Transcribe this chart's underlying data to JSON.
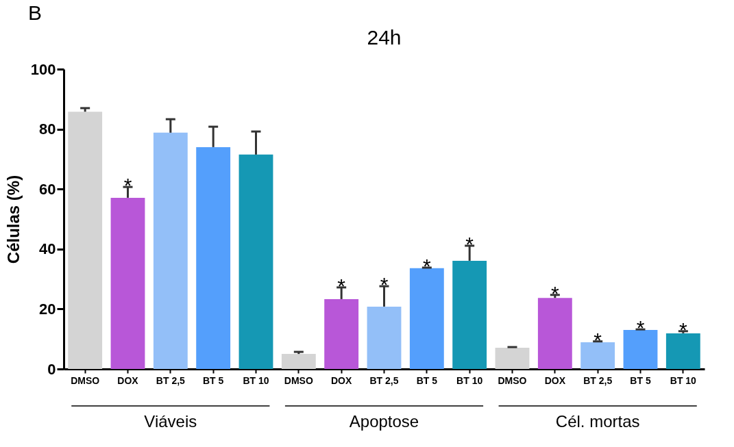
{
  "chart_data": {
    "type": "bar",
    "title": "24h",
    "ylabel": "Células (%)",
    "categories": [
      "DMSO",
      "DOX",
      "BT 2,5",
      "BT 5",
      "BT 10",
      "DMSO",
      "DOX",
      "BT 2,5",
      "BT 5",
      "BT 10",
      "DMSO",
      "DOX",
      "BT 2,5",
      "BT 5",
      "BT 10"
    ],
    "values": [
      85.8,
      57.1,
      78.8,
      74,
      71.5,
      5,
      23.3,
      20.8,
      33.6,
      36.1,
      7.1,
      23.7,
      8.9,
      13,
      11.9
    ],
    "errors": [
      [
        85.8,
        87
      ],
      [
        57.1,
        60.7
      ],
      [
        78.8,
        83.3
      ],
      [
        74,
        80.8
      ],
      [
        71.5,
        79.2
      ],
      [
        5,
        5.7
      ],
      [
        23.3,
        27.2
      ],
      [
        20.8,
        27.6
      ],
      [
        33.6,
        33.8
      ],
      [
        36.1,
        41.1
      ],
      [
        7.1,
        7.3
      ],
      [
        23.7,
        24.7
      ],
      [
        8.9,
        9.2
      ],
      [
        13,
        13.2
      ],
      [
        11.9,
        12.6
      ]
    ],
    "value_labels": [
      null,
      "*",
      null,
      null,
      null,
      null,
      "*",
      "*",
      "*",
      "*",
      null,
      "*",
      "*",
      "*",
      "*"
    ],
    "colors": [
      "#d4d4d4",
      "#b857d8",
      "#93bff8",
      "#549ffc",
      "#1598b4",
      "#d4d4d4",
      "#b857d8",
      "#93bff8",
      "#549ffc",
      "#1598b4",
      "#d4d4d4",
      "#b857d8",
      "#93bff8",
      "#549ffc",
      "#1598b4"
    ],
    "ylim": [
      0,
      100
    ],
    "yticks": [
      0,
      20,
      40,
      60,
      80,
      100
    ],
    "annotations": [
      "B",
      "Viáveis",
      "Apoptose",
      "Cél. mortas"
    ]
  }
}
